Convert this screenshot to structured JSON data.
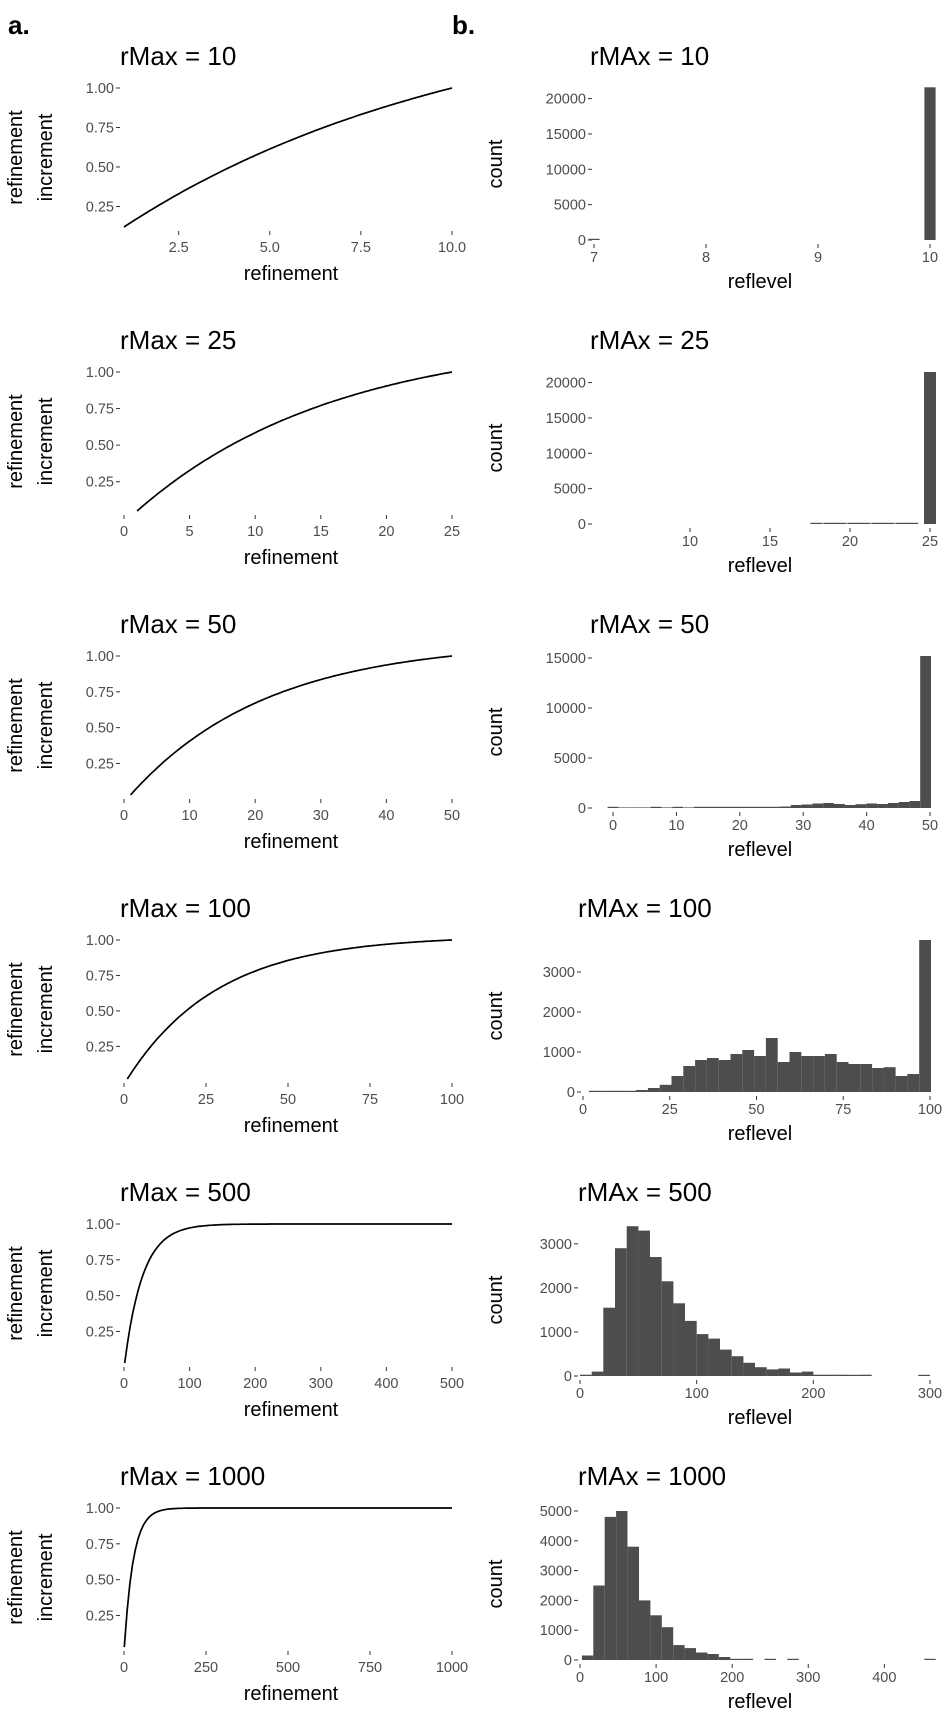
{
  "panel_labels": [
    "a.",
    "b."
  ],
  "colors": {
    "line": "#000000",
    "bar": "#4d4d4d",
    "tick_text": "#4d4d4d",
    "tick_mark": "#333333"
  },
  "chart_data": [
    {
      "type": "line",
      "title": "rMax = 10",
      "xlabel": "refinement",
      "ylabel": [
        "refinement",
        "increment"
      ],
      "rmax": 10,
      "xlim": [
        1,
        10
      ],
      "ylim": [
        0.12,
        1.0
      ],
      "xticks": [
        2.5,
        5.0,
        7.5,
        10.0
      ],
      "xtick_labels": [
        "2.5",
        "5.0",
        "7.5",
        "10.0"
      ],
      "yticks": [
        0.25,
        0.5,
        0.75,
        1.0
      ],
      "ytick_labels": [
        "0.25",
        "0.50",
        "0.75",
        "1.00"
      ],
      "x": [
        1,
        2,
        3,
        4,
        5,
        6,
        7,
        8,
        9,
        10
      ],
      "y": [
        0.12,
        0.23,
        0.34,
        0.44,
        0.54,
        0.63,
        0.72,
        0.8,
        0.88,
        1.0
      ]
    },
    {
      "type": "bar",
      "title": "rMAx = 10",
      "xlabel": "reflevel",
      "ylabel": "count",
      "xlim": [
        7,
        10
      ],
      "ylim": [
        0,
        21500
      ],
      "xticks": [
        7,
        8,
        9,
        10
      ],
      "xtick_labels": [
        "7",
        "8",
        "9",
        "10"
      ],
      "yticks": [
        0,
        5000,
        10000,
        15000,
        20000
      ],
      "ytick_labels": [
        "0",
        "5000",
        "10000",
        "15000",
        "20000"
      ],
      "bin_width": 0.1,
      "x": [
        7,
        10
      ],
      "values": [
        4,
        21600
      ]
    },
    {
      "type": "line",
      "title": "rMax = 25",
      "xlabel": "refinement",
      "ylabel": [
        "refinement",
        "increment"
      ],
      "rmax": 25,
      "xlim": [
        0,
        25
      ],
      "ylim": [
        0.05,
        1.0
      ],
      "xticks": [
        0,
        5,
        10,
        15,
        20,
        25
      ],
      "xtick_labels": [
        "0",
        "5",
        "10",
        "15",
        "20",
        "25"
      ],
      "yticks": [
        0.25,
        0.5,
        0.75,
        1.0
      ],
      "ytick_labels": [
        "0.25",
        "0.50",
        "0.75",
        "1.00"
      ],
      "x": [
        1,
        5,
        10,
        15,
        20,
        25
      ],
      "y": [
        0.05,
        0.27,
        0.52,
        0.72,
        0.87,
        1.0
      ]
    },
    {
      "type": "bar",
      "title": "rMAx = 25",
      "xlabel": "reflevel",
      "ylabel": "count",
      "xlim": [
        4,
        25
      ],
      "ylim": [
        0,
        21500
      ],
      "xticks": [
        10,
        15,
        20,
        25
      ],
      "xtick_labels": [
        "10",
        "15",
        "20",
        "25"
      ],
      "yticks": [
        0,
        5000,
        10000,
        15000,
        20000
      ],
      "ytick_labels": [
        "0",
        "5000",
        "10000",
        "15000",
        "20000"
      ],
      "bin_width": 0.75,
      "x": [
        17.9,
        18.7,
        19.4,
        20.2,
        20.9,
        21.7,
        22.4,
        23.2,
        23.9,
        25
      ],
      "values": [
        60,
        60,
        60,
        60,
        60,
        60,
        60,
        60,
        80,
        21500
      ]
    },
    {
      "type": "line",
      "title": "rMax = 50",
      "xlabel": "refinement",
      "ylabel": [
        "refinement",
        "increment"
      ],
      "rmax": 50,
      "xlim": [
        0,
        50
      ],
      "ylim": [
        0.03,
        1.0
      ],
      "xticks": [
        0,
        10,
        20,
        30,
        40,
        50
      ],
      "xtick_labels": [
        "0",
        "10",
        "20",
        "30",
        "40",
        "50"
      ],
      "yticks": [
        0.25,
        0.5,
        0.75,
        1.0
      ],
      "ytick_labels": [
        "0.25",
        "0.50",
        "0.75",
        "1.00"
      ],
      "x": [
        1,
        10,
        20,
        30,
        40,
        50
      ],
      "y": [
        0.03,
        0.41,
        0.68,
        0.85,
        0.95,
        1.0
      ]
    },
    {
      "type": "bar",
      "title": "rMAx = 50",
      "xlabel": "reflevel",
      "ylabel": "count",
      "xlim": [
        -3,
        50
      ],
      "ylim": [
        0,
        15200
      ],
      "xticks": [
        0,
        10,
        20,
        30,
        40,
        50
      ],
      "xtick_labels": [
        "0",
        "10",
        "20",
        "30",
        "40",
        "50"
      ],
      "yticks": [
        0,
        5000,
        10000,
        15000
      ],
      "ytick_labels": [
        "0",
        "5000",
        "10000",
        "15000"
      ],
      "bin_width": 1.7,
      "x": [
        0,
        1.7,
        3.4,
        5.1,
        6.8,
        8.5,
        10.2,
        11.9,
        13.6,
        15.3,
        17,
        18.7,
        20.4,
        22.1,
        23.8,
        25.5,
        27.2,
        28.9,
        30.6,
        32.3,
        34,
        35.7,
        37.4,
        39.1,
        40.8,
        42.5,
        44.2,
        45.9,
        47.6,
        49.3
      ],
      "values": [
        20,
        0,
        0,
        0,
        10,
        0,
        20,
        0,
        20,
        30,
        20,
        40,
        50,
        60,
        80,
        100,
        150,
        300,
        350,
        450,
        500,
        400,
        300,
        380,
        450,
        400,
        500,
        600,
        700,
        15200
      ]
    },
    {
      "type": "line",
      "title": "rMax = 100",
      "xlabel": "refinement",
      "ylabel": [
        "refinement",
        "increment"
      ],
      "rmax": 100,
      "xlim": [
        0,
        100
      ],
      "ylim": [
        0.02,
        1.0
      ],
      "xticks": [
        0,
        25,
        50,
        75,
        100
      ],
      "xtick_labels": [
        "0",
        "25",
        "50",
        "75",
        "100"
      ],
      "yticks": [
        0.25,
        0.5,
        0.75,
        1.0
      ],
      "ytick_labels": [
        "0.25",
        "0.50",
        "0.75",
        "1.00"
      ],
      "x": [
        1,
        10,
        25,
        50,
        75,
        100
      ],
      "y": [
        0.02,
        0.42,
        0.74,
        0.93,
        0.99,
        1.0
      ]
    },
    {
      "type": "bar",
      "title": "rMAx = 100",
      "xlabel": "reflevel",
      "ylabel": "count",
      "xlim": [
        0,
        100
      ],
      "ylim": [
        0,
        3800
      ],
      "xticks": [
        0,
        25,
        50,
        75,
        100
      ],
      "xtick_labels": [
        "0",
        "25",
        "50",
        "75",
        "100"
      ],
      "yticks": [
        0,
        1000,
        2000,
        3000
      ],
      "ytick_labels": [
        "0",
        "1000",
        "2000",
        "3000"
      ],
      "bin_width": 3.4,
      "x": [
        3.4,
        6.8,
        10.2,
        13.6,
        17,
        20.4,
        23.8,
        27.2,
        30.6,
        34,
        37.4,
        40.8,
        44.2,
        47.6,
        51,
        54.4,
        57.8,
        61.2,
        64.6,
        68,
        71.4,
        74.8,
        78.2,
        81.6,
        85,
        88.4,
        91.8,
        95.2,
        98.6
      ],
      "values": [
        10,
        20,
        10,
        20,
        50,
        100,
        180,
        400,
        650,
        800,
        850,
        800,
        950,
        1050,
        900,
        1350,
        750,
        1000,
        900,
        900,
        950,
        750,
        700,
        700,
        600,
        620,
        400,
        450,
        3800
      ]
    },
    {
      "type": "line",
      "title": "rMax = 500",
      "xlabel": "refinement",
      "ylabel": [
        "refinement",
        "increment"
      ],
      "rmax": 500,
      "xlim": [
        0,
        500
      ],
      "ylim": [
        0.03,
        1.0
      ],
      "xticks": [
        0,
        100,
        200,
        300,
        400,
        500
      ],
      "xtick_labels": [
        "0",
        "100",
        "200",
        "300",
        "400",
        "500"
      ],
      "yticks": [
        0.25,
        0.5,
        0.75,
        1.0
      ],
      "ytick_labels": [
        "0.25",
        "0.50",
        "0.75",
        "1.00"
      ],
      "x": [
        1,
        10,
        25,
        50,
        100,
        500
      ],
      "y": [
        0.03,
        0.58,
        0.88,
        0.98,
        1.0,
        1.0
      ]
    },
    {
      "type": "bar",
      "title": "rMAx = 500",
      "xlabel": "reflevel",
      "ylabel": "count",
      "xlim": [
        0,
        300
      ],
      "ylim": [
        0,
        3450
      ],
      "xticks": [
        0,
        100,
        200,
        300
      ],
      "xtick_labels": [
        "0",
        "100",
        "200",
        "300"
      ],
      "yticks": [
        0,
        1000,
        2000,
        3000
      ],
      "ytick_labels": [
        "0",
        "1000",
        "2000",
        "3000"
      ],
      "bin_width": 10,
      "x": [
        5,
        15,
        25,
        35,
        45,
        55,
        65,
        75,
        85,
        95,
        105,
        115,
        125,
        135,
        145,
        155,
        165,
        175,
        185,
        195,
        205,
        215,
        225,
        235,
        245,
        295
      ],
      "values": [
        30,
        100,
        1550,
        2900,
        3400,
        3300,
        2700,
        2150,
        1650,
        1250,
        950,
        850,
        600,
        450,
        300,
        200,
        150,
        170,
        80,
        100,
        30,
        30,
        30,
        20,
        30,
        10
      ]
    },
    {
      "type": "line",
      "title": "rMax = 1000",
      "xlabel": "refinement",
      "ylabel": [
        "refinement",
        "increment"
      ],
      "rmax": 1000,
      "xlim": [
        0,
        1000
      ],
      "ylim": [
        0.03,
        1.0
      ],
      "xticks": [
        0,
        250,
        500,
        750,
        1000
      ],
      "xtick_labels": [
        "0",
        "250",
        "500",
        "750",
        "1000"
      ],
      "yticks": [
        0.25,
        0.5,
        0.75,
        1.0
      ],
      "ytick_labels": [
        "0.25",
        "0.50",
        "0.75",
        "1.00"
      ],
      "x": [
        1,
        10,
        25,
        50,
        100,
        1000
      ],
      "y": [
        0.03,
        0.58,
        0.88,
        0.98,
        1.0,
        1.0
      ]
    },
    {
      "type": "bar",
      "title": "rMAx = 1000",
      "xlabel": "reflevel",
      "ylabel": "count",
      "xlim": [
        0,
        460
      ],
      "ylim": [
        0,
        5100
      ],
      "xticks": [
        0,
        100,
        200,
        300,
        400
      ],
      "xtick_labels": [
        "0",
        "100",
        "200",
        "300",
        "400"
      ],
      "yticks": [
        0,
        1000,
        2000,
        3000,
        4000,
        5000
      ],
      "ytick_labels": [
        "0",
        "1000",
        "2000",
        "3000",
        "4000",
        "5000"
      ],
      "bin_width": 15,
      "x": [
        10,
        25,
        40,
        55,
        70,
        85,
        100,
        115,
        130,
        145,
        160,
        175,
        190,
        205,
        220,
        250,
        280,
        460
      ],
      "values": [
        150,
        2500,
        4800,
        5000,
        3800,
        2000,
        1500,
        1100,
        500,
        400,
        250,
        200,
        100,
        40,
        20,
        10,
        10,
        5
      ]
    }
  ]
}
